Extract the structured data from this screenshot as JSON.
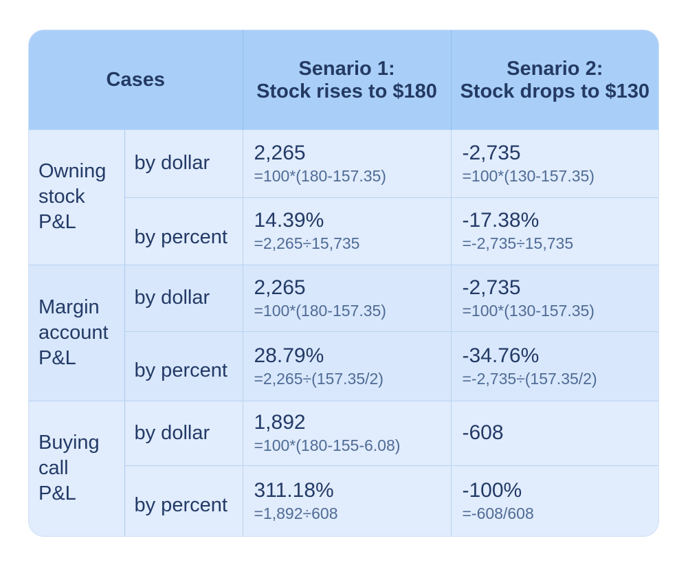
{
  "header": {
    "cases": "Cases",
    "scenario1_line1": "Senario 1:",
    "scenario1_line2": "Stock rises to $180",
    "scenario2_line1": "Senario 2:",
    "scenario2_line2": "Stock drops to $130"
  },
  "groups": [
    {
      "label_lines": [
        "Owning",
        "stock",
        "P&L"
      ],
      "rows": [
        {
          "metric": "by dollar",
          "s1_value": "2,265",
          "s1_formula": "=100*(180-157.35)",
          "s2_value": "-2,735",
          "s2_formula": "=100*(130-157.35)"
        },
        {
          "metric": "by percent",
          "s1_value": "14.39%",
          "s1_formula": "=2,265÷15,735",
          "s2_value": "-17.38%",
          "s2_formula": "=-2,735÷15,735"
        }
      ]
    },
    {
      "label_lines": [
        "Margin",
        "account",
        "P&L"
      ],
      "rows": [
        {
          "metric": "by dollar",
          "s1_value": "2,265",
          "s1_formula": "=100*(180-157.35)",
          "s2_value": "-2,735",
          "s2_formula": "=100*(130-157.35)"
        },
        {
          "metric": "by percent",
          "s1_value": "28.79%",
          "s1_formula": "=2,265÷(157.35/2)",
          "s2_value": "-34.76%",
          "s2_formula": "=-2,735÷(157.35/2)"
        }
      ]
    },
    {
      "label_lines": [
        "Buying",
        "call",
        "P&L"
      ],
      "rows": [
        {
          "metric": "by dollar",
          "s1_value": "1,892",
          "s1_formula": "=100*(180-155-6.08)",
          "s2_value": "-608",
          "s2_formula": ""
        },
        {
          "metric": "by percent",
          "s1_value": "311.18%",
          "s1_formula": "=1,892÷608",
          "s2_value": "-100%",
          "s2_formula": "=-608/608"
        }
      ]
    }
  ],
  "colors": {
    "header_bg": "#a9cff9",
    "body_bg": "#e1ecfc",
    "text": "#233a66"
  }
}
